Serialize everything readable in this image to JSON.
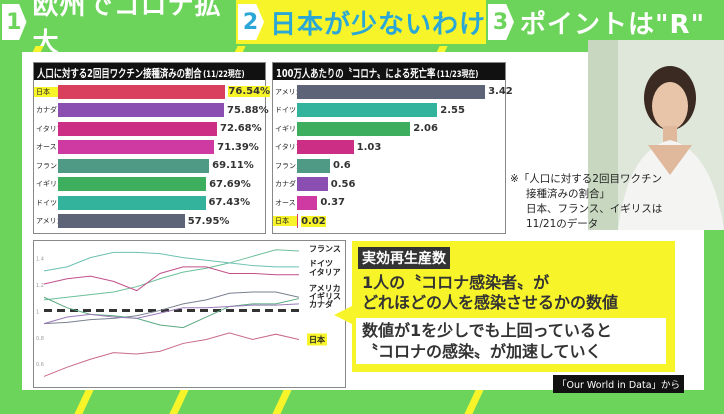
{
  "topbar": {
    "items": [
      {
        "num": "1",
        "label": "欧州でコロナ拡大",
        "active": false
      },
      {
        "num": "2",
        "label": "日本が少ないわけ",
        "active": true
      },
      {
        "num": "3",
        "label": "ポイントは\"R\"",
        "active": false
      }
    ]
  },
  "chart_data": [
    {
      "type": "bar",
      "title": "人口に対する2回目ワクチン接種済みの割合",
      "date": "(11/22現在)",
      "unit": "%",
      "categories": [
        "日本",
        "カナダ",
        "イタリア",
        "オーストラリア",
        "フランス",
        "イギリス",
        "ドイツ",
        "アメリカ"
      ],
      "values": [
        76.54,
        75.88,
        72.68,
        71.39,
        69.11,
        67.69,
        67.43,
        57.95
      ],
      "labels": [
        "76.54%",
        "75.88%",
        "72.68%",
        "71.39%",
        "69.11%",
        "67.69%",
        "67.43%",
        "57.95%"
      ],
      "colors": [
        "#d9405d",
        "#8a4fb0",
        "#cc2e86",
        "#cf3aa2",
        "#4f9a85",
        "#3dae5e",
        "#33b39c",
        "#5e6478"
      ],
      "xlim": [
        0,
        80
      ]
    },
    {
      "type": "bar",
      "title": "100万人あたりの〝コロナ〟による死亡率",
      "date": "(11/23現在)",
      "categories": [
        "アメリカ",
        "ドイツ",
        "イギリス",
        "イタリア",
        "フランス",
        "カナダ",
        "オーストラリア",
        "日本"
      ],
      "values": [
        3.42,
        2.55,
        2.06,
        1.03,
        0.6,
        0.56,
        0.37,
        0.02
      ],
      "labels": [
        "3.42",
        "2.55",
        "2.06",
        "1.03",
        "0.6",
        "0.56",
        "0.37",
        "0.02"
      ],
      "colors": [
        "#5e6478",
        "#33b39c",
        "#3dae5e",
        "#cc2e86",
        "#4f9a85",
        "#8a4fb0",
        "#cf3aa2",
        "#d9405d"
      ],
      "xlim": [
        0,
        3.6
      ]
    },
    {
      "type": "line",
      "ylim": [
        0.4,
        1.5
      ],
      "yticks": [
        "1.4",
        "1.2",
        "1",
        "0.8",
        "0.6",
        "0.4"
      ],
      "reference_line": 1,
      "series": [
        {
          "name": "フランス",
          "color": "#6cbf9a",
          "values": [
            1.08,
            1.1,
            1.12,
            1.14,
            1.18,
            1.24,
            1.29,
            1.32,
            1.36,
            1.41,
            1.46,
            1.45
          ]
        },
        {
          "name": "ドイツ",
          "color": "#6cc0b4",
          "values": [
            1.3,
            1.33,
            1.4,
            1.44,
            1.44,
            1.43,
            1.4,
            1.38,
            1.36,
            1.34,
            1.33,
            1.33
          ]
        },
        {
          "name": "イタリア",
          "color": "#c0508a",
          "values": [
            1.2,
            1.24,
            1.26,
            1.22,
            1.15,
            1.28,
            1.33,
            1.33,
            1.28,
            1.28,
            1.27,
            1.27
          ]
        },
        {
          "name": "アメリカ",
          "color": "#7a8090",
          "values": [
            0.9,
            0.91,
            0.93,
            0.94,
            0.96,
            1.0,
            1.05,
            1.08,
            1.13,
            1.14,
            1.14,
            1.1
          ]
        },
        {
          "name": "イギリス",
          "color": "#5aaa80",
          "values": [
            1.1,
            1.02,
            0.97,
            0.96,
            0.94,
            0.89,
            0.87,
            0.95,
            1.03,
            1.05,
            1.05,
            1.09
          ]
        },
        {
          "name": "カナダ",
          "color": "#9a7ab8",
          "values": [
            0.9,
            0.95,
            0.97,
            0.95,
            0.94,
            0.98,
            1.02,
            1.02,
            1.03,
            1.04,
            1.04,
            1.05
          ]
        },
        {
          "name": "日本",
          "color": "#c86a8a",
          "values": [
            0.5,
            0.57,
            0.63,
            0.68,
            0.67,
            0.69,
            0.75,
            0.78,
            0.83,
            0.78,
            0.82,
            0.78
          ]
        }
      ]
    }
  ],
  "note": {
    "line1": "※「人口に対する2回目ワクチン",
    "line2": "接種済みの割合」",
    "line3": "日本、フランス、イギリスは",
    "line4": "11/21のデータ"
  },
  "callout": {
    "tag": "実効再生産数",
    "line1": "1人の〝コロナ感染者〟が",
    "line2": "どれほどの人を感染させるかの数値",
    "line3": "数値が1を少しでも上回っていると",
    "line4": "〝コロナの感染〟が加速していく",
    "color": "#f8f42a"
  },
  "source": "「Our World in Data」から",
  "colors": {
    "green": "#6cd45a",
    "yellow": "#f8f42a",
    "topic_blue": "#2aa7d6"
  }
}
